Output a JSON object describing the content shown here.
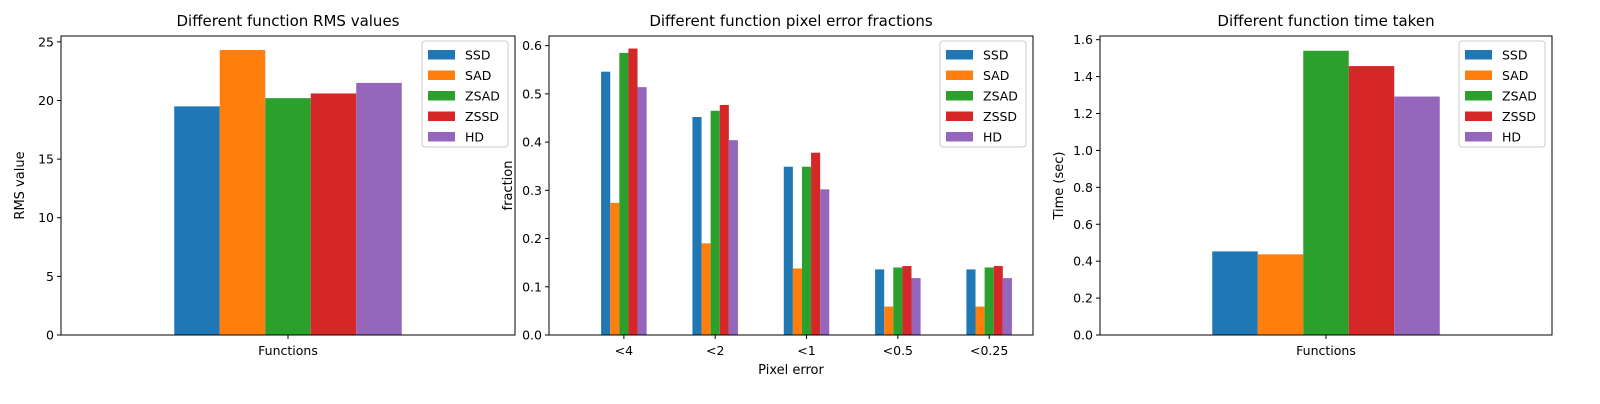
{
  "chart_data": [
    {
      "type": "bar",
      "title": "Different function RMS values",
      "xlabel": "",
      "ylabel": "RMS value",
      "categories": [
        "Functions"
      ],
      "ylim": [
        0,
        25.5
      ],
      "yticks": [
        0,
        5,
        10,
        15,
        20,
        25
      ],
      "ytick_labels": [
        "0",
        "5",
        "10",
        "15",
        "20",
        "25"
      ],
      "legend_position": "top-right",
      "series": [
        {
          "name": "SSD",
          "color": "#1f77b4",
          "values": [
            19.5
          ]
        },
        {
          "name": "SAD",
          "color": "#ff7f0e",
          "values": [
            24.3
          ]
        },
        {
          "name": "ZSAD",
          "color": "#2ca02c",
          "values": [
            20.2
          ]
        },
        {
          "name": "ZSSD",
          "color": "#d62728",
          "values": [
            20.6
          ]
        },
        {
          "name": "HD",
          "color": "#9467bd",
          "values": [
            21.5
          ]
        }
      ]
    },
    {
      "type": "bar",
      "title": "Different function pixel error fractions",
      "xlabel": "Pixel error",
      "ylabel": "fraction",
      "categories": [
        "<4",
        "<2",
        "<1",
        "<0.5",
        "<0.25"
      ],
      "ylim": [
        0,
        0.62
      ],
      "yticks": [
        0,
        0.1,
        0.2,
        0.3,
        0.4,
        0.5,
        0.6
      ],
      "ytick_labels": [
        "0.0",
        "0.1",
        "0.2",
        "0.3",
        "0.4",
        "0.5",
        "0.6"
      ],
      "legend_position": "top-right",
      "series": [
        {
          "name": "SSD",
          "color": "#1f77b4",
          "values": [
            0.546,
            0.452,
            0.349,
            0.136,
            0.136
          ]
        },
        {
          "name": "SAD",
          "color": "#ff7f0e",
          "values": [
            0.274,
            0.19,
            0.138,
            0.059,
            0.059
          ]
        },
        {
          "name": "ZSAD",
          "color": "#2ca02c",
          "values": [
            0.585,
            0.465,
            0.349,
            0.14,
            0.14
          ]
        },
        {
          "name": "ZSSD",
          "color": "#d62728",
          "values": [
            0.594,
            0.477,
            0.378,
            0.143,
            0.143
          ]
        },
        {
          "name": "HD",
          "color": "#9467bd",
          "values": [
            0.514,
            0.404,
            0.302,
            0.118,
            0.118
          ]
        }
      ]
    },
    {
      "type": "bar",
      "title": "Different function time taken",
      "xlabel": "",
      "ylabel": "Time (sec)",
      "categories": [
        "Functions"
      ],
      "ylim": [
        0,
        1.62
      ],
      "yticks": [
        0,
        0.2,
        0.4,
        0.6,
        0.8,
        1.0,
        1.2,
        1.4,
        1.6
      ],
      "ytick_labels": [
        "0.0",
        "0.2",
        "0.4",
        "0.6",
        "0.8",
        "1.0",
        "1.2",
        "1.4",
        "1.6"
      ],
      "legend_position": "top-right",
      "series": [
        {
          "name": "SSD",
          "color": "#1f77b4",
          "values": [
            0.453
          ]
        },
        {
          "name": "SAD",
          "color": "#ff7f0e",
          "values": [
            0.437
          ]
        },
        {
          "name": "ZSAD",
          "color": "#2ca02c",
          "values": [
            1.54
          ]
        },
        {
          "name": "ZSSD",
          "color": "#d62728",
          "values": [
            1.457
          ]
        },
        {
          "name": "HD",
          "color": "#9467bd",
          "values": [
            1.292
          ]
        }
      ]
    }
  ]
}
